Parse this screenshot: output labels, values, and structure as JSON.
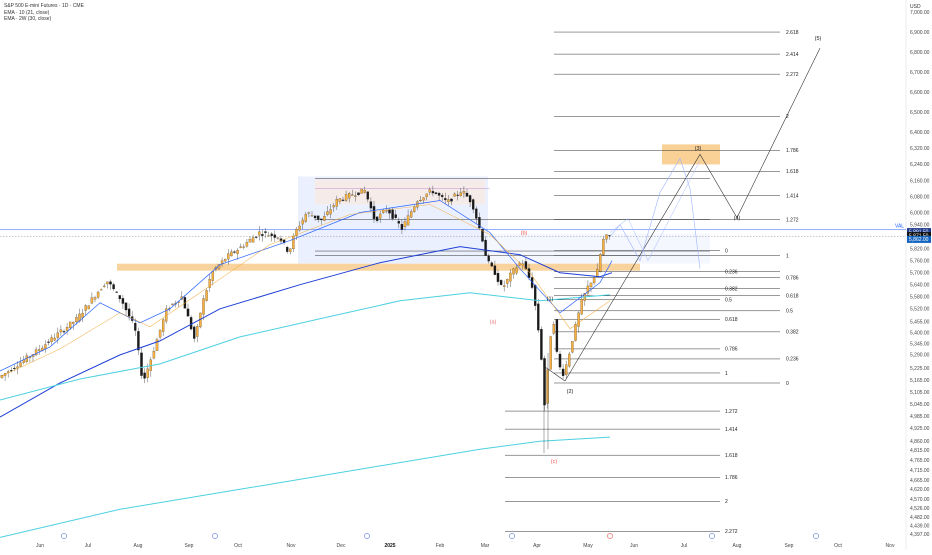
{
  "chart_data": {
    "type": "candlestick",
    "title": "S&P 500 E-mini Futures · 1D · CME",
    "currency": "USD",
    "indicators": [
      "EMA · 10 (21, close)",
      "EMA · 2W (30, close)"
    ],
    "y_range": [
      4360,
      7060
    ],
    "y_ticks": [
      7000,
      6900,
      6800,
      6700,
      6600,
      6500,
      6400,
      6320,
      6240,
      6160,
      6080,
      6000,
      5940,
      5880,
      5820,
      5760,
      5700,
      5640,
      5580,
      5520,
      5455,
      5400,
      5345,
      5290,
      5225,
      5165,
      5105,
      5045,
      4985,
      4925,
      4860,
      4815,
      4765,
      4715,
      4665,
      4620,
      4570,
      4526,
      4482,
      4439,
      4397
    ],
    "x_ticks": [
      "Jun",
      "Jul",
      "Aug",
      "Sep",
      "Oct",
      "Nov",
      "Dec",
      "2025",
      "Feb",
      "Mar",
      "Apr",
      "May",
      "Jun",
      "Jul",
      "Aug",
      "Sep",
      "Oct",
      "Nov"
    ],
    "price_badges": [
      "5,891.50",
      "5,871.50",
      "5,862.00"
    ],
    "val_label": "VAL",
    "support_zone": [
      5710,
      5745
    ],
    "target_zone": [
      6240,
      6340
    ],
    "fib_extension_upper": [
      {
        "label": "2.618",
        "price": 6900
      },
      {
        "label": "2.414",
        "price": 6790
      },
      {
        "label": "2.272",
        "price": 6690
      },
      {
        "label": "2",
        "price": 6480
      },
      {
        "label": "1.786",
        "price": 6310
      },
      {
        "label": "1.618",
        "price": 6205
      },
      {
        "label": "1.414",
        "price": 6085
      },
      {
        "label": "1.272",
        "price": 5965
      },
      {
        "label": "0",
        "price": 5810
      },
      {
        "label": "1",
        "price": 5785
      },
      {
        "label": "0.236",
        "price": 5705
      },
      {
        "label": "0.786",
        "price": 5676
      },
      {
        "label": "0.382",
        "price": 5620
      },
      {
        "label": "0.618",
        "price": 5585
      },
      {
        "label": "0.5",
        "price": 5565
      },
      {
        "label": "0.5",
        "price": 5510
      },
      {
        "label": "0.618",
        "price": 5468
      },
      {
        "label": "0.382",
        "price": 5405
      },
      {
        "label": "0.786",
        "price": 5320
      },
      {
        "label": "0.236",
        "price": 5270
      },
      {
        "label": "1",
        "price": 5200
      },
      {
        "label": "0",
        "price": 5150
      }
    ],
    "fib_extension_lower": [
      {
        "label": "1.272",
        "price": 5010
      },
      {
        "label": "1.414",
        "price": 4920
      },
      {
        "label": "1.618",
        "price": 4790
      },
      {
        "label": "1.786",
        "price": 4680
      },
      {
        "label": "2",
        "price": 4560
      },
      {
        "label": "2.272",
        "price": 4410
      }
    ],
    "wave_labels": [
      "(a)",
      "(b)",
      "(c)",
      "(1)",
      "(2)",
      "(3)",
      "(4)",
      "(5)"
    ],
    "series": [
      {
        "name": "EMA 21",
        "color": "#2962ff"
      },
      {
        "name": "EMA 2W 30",
        "color": "#4dd0e1"
      }
    ]
  }
}
